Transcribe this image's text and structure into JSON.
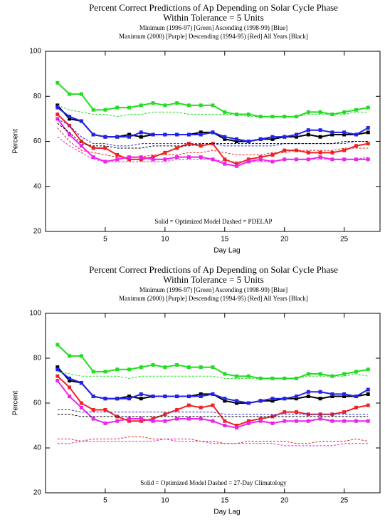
{
  "chart_data": [
    {
      "type": "line",
      "title": "Percent Correct Predictions of Ap Depending on Solar Cycle Phase",
      "subtitle": "Within Tolerance = 5 Units",
      "legend_lines": [
        "Minimum (1996-97) [Green]   Ascending (1998-99) [Blue]",
        "Maximum (2000) [Purple]   Descending (1994-95) [Red]   All Years [Black]"
      ],
      "annotation": "Solid = Optimized Model     Dashed = PDELAP",
      "x_label": "Day Lag",
      "y_label": "Percent",
      "x": [
        1,
        2,
        3,
        4,
        5,
        6,
        7,
        8,
        9,
        10,
        11,
        12,
        13,
        14,
        15,
        16,
        17,
        18,
        19,
        20,
        21,
        22,
        23,
        24,
        25,
        26,
        27
      ],
      "xlim": [
        0,
        28
      ],
      "ylim": [
        20,
        100
      ],
      "xticks": [
        5,
        10,
        15,
        20,
        25
      ],
      "yticks": [
        20,
        40,
        60,
        80,
        100
      ],
      "series": [
        {
          "color": "#22dd22",
          "style": "solid",
          "values": [
            86,
            81,
            81,
            74,
            74,
            75,
            75,
            76,
            77,
            76,
            77,
            76,
            76,
            76,
            73,
            72,
            72,
            71,
            71,
            71,
            71,
            73,
            73,
            72,
            73,
            74,
            75
          ]
        },
        {
          "color": "#000000",
          "style": "solid",
          "values": [
            76,
            70,
            69,
            63,
            62,
            62,
            63,
            62,
            63,
            63,
            63,
            63,
            64,
            64,
            61,
            60,
            60,
            61,
            61,
            62,
            62,
            63,
            62,
            63,
            63,
            63,
            64
          ]
        },
        {
          "color": "#2222ee",
          "style": "solid",
          "values": [
            75,
            71,
            69,
            63,
            62,
            62,
            62,
            64,
            63,
            63,
            63,
            63,
            63,
            64,
            62,
            61,
            60,
            61,
            62,
            62,
            63,
            65,
            65,
            64,
            64,
            63,
            66
          ]
        },
        {
          "color": "#ee2222",
          "style": "solid",
          "values": [
            72,
            67,
            60,
            57,
            57,
            54,
            52,
            52,
            53,
            55,
            57,
            59,
            58,
            59,
            52,
            50,
            52,
            53,
            54,
            56,
            56,
            55,
            55,
            55,
            56,
            58,
            59
          ]
        },
        {
          "color": "#ee22ee",
          "style": "solid",
          "values": [
            70,
            63,
            58,
            53,
            51,
            52,
            53,
            53,
            52,
            52,
            53,
            53,
            53,
            52,
            50,
            49,
            51,
            52,
            51,
            52,
            52,
            52,
            53,
            52,
            52,
            52,
            52
          ]
        },
        {
          "color": "#22dd22",
          "style": "dashed",
          "values": [
            76,
            74,
            73,
            72,
            72,
            71,
            72,
            72,
            73,
            73,
            73,
            72,
            72,
            72,
            72,
            72,
            71,
            71,
            71,
            71,
            71,
            72,
            72,
            72,
            72,
            73,
            73
          ]
        },
        {
          "color": "#2222ee",
          "style": "dashed",
          "values": [
            70,
            67,
            62,
            59,
            59,
            58,
            58,
            59,
            59,
            59,
            59,
            59,
            59,
            59,
            58,
            58,
            58,
            58,
            58,
            59,
            59,
            59,
            59,
            59,
            59,
            60,
            60
          ]
        },
        {
          "color": "#000000",
          "style": "dashed",
          "values": [
            68,
            64,
            59,
            58,
            58,
            57,
            57,
            57,
            58,
            58,
            58,
            58,
            59,
            59,
            59,
            59,
            59,
            59,
            59,
            59,
            59,
            59,
            59,
            59,
            60,
            60,
            60
          ]
        },
        {
          "color": "#ee2222",
          "style": "dashed",
          "values": [
            66,
            60,
            56,
            55,
            54,
            53,
            53,
            53,
            54,
            54,
            54,
            55,
            55,
            56,
            55,
            54,
            54,
            54,
            55,
            55,
            56,
            56,
            56,
            56,
            57,
            57,
            57
          ]
        },
        {
          "color": "#ee22ee",
          "style": "dashed",
          "values": [
            62,
            58,
            55,
            52,
            51,
            51,
            51,
            51,
            51,
            51,
            52,
            52,
            52,
            52,
            51,
            51,
            51,
            51,
            51,
            52,
            52,
            52,
            52,
            52,
            52,
            52,
            53
          ]
        }
      ]
    },
    {
      "type": "line",
      "title": "Percent Correct Predictions of Ap Depending on Solar Cycle Phase",
      "subtitle": "Within Tolerance = 5 Units",
      "legend_lines": [
        "Minimum (1996-97) [Green]   Ascending (1998-99) [Blue]",
        "Maximum (2000) [Purple]   Descending (1994-95) [Red]   All Years [Black]"
      ],
      "annotation": "Solid = Optimized Model     Dashed = 27-Day Climatology",
      "x_label": "Day Lag",
      "y_label": "Percent",
      "x": [
        1,
        2,
        3,
        4,
        5,
        6,
        7,
        8,
        9,
        10,
        11,
        12,
        13,
        14,
        15,
        16,
        17,
        18,
        19,
        20,
        21,
        22,
        23,
        24,
        25,
        26,
        27
      ],
      "xlim": [
        0,
        28
      ],
      "ylim": [
        20,
        100
      ],
      "xticks": [
        5,
        10,
        15,
        20,
        25
      ],
      "yticks": [
        20,
        40,
        60,
        80,
        100
      ],
      "series": [
        {
          "color": "#22dd22",
          "style": "solid",
          "values": [
            86,
            81,
            81,
            74,
            74,
            75,
            75,
            76,
            77,
            76,
            77,
            76,
            76,
            76,
            73,
            72,
            72,
            71,
            71,
            71,
            71,
            73,
            73,
            72,
            73,
            74,
            75
          ]
        },
        {
          "color": "#000000",
          "style": "solid",
          "values": [
            76,
            70,
            69,
            63,
            62,
            62,
            63,
            62,
            63,
            63,
            63,
            63,
            64,
            64,
            61,
            60,
            60,
            61,
            61,
            62,
            62,
            63,
            62,
            63,
            63,
            63,
            64
          ]
        },
        {
          "color": "#2222ee",
          "style": "solid",
          "values": [
            75,
            71,
            69,
            63,
            62,
            62,
            62,
            64,
            63,
            63,
            63,
            63,
            63,
            64,
            62,
            61,
            60,
            61,
            62,
            62,
            63,
            65,
            65,
            64,
            64,
            63,
            66
          ]
        },
        {
          "color": "#ee2222",
          "style": "solid",
          "values": [
            72,
            67,
            60,
            57,
            57,
            54,
            52,
            52,
            53,
            55,
            57,
            59,
            58,
            59,
            52,
            50,
            52,
            53,
            54,
            56,
            56,
            55,
            55,
            55,
            56,
            58,
            59
          ]
        },
        {
          "color": "#ee22ee",
          "style": "solid",
          "values": [
            70,
            63,
            58,
            53,
            51,
            52,
            53,
            53,
            52,
            52,
            53,
            53,
            53,
            52,
            50,
            49,
            51,
            52,
            51,
            52,
            52,
            52,
            53,
            52,
            52,
            52,
            52
          ]
        },
        {
          "color": "#22dd22",
          "style": "dashed",
          "values": [
            74,
            73,
            72,
            72,
            72,
            72,
            71,
            72,
            72,
            72,
            72,
            72,
            72,
            72,
            71,
            71,
            71,
            71,
            71,
            71,
            71,
            72,
            72,
            72,
            72,
            73,
            72
          ]
        },
        {
          "color": "#2222ee",
          "style": "dashed",
          "values": [
            57,
            57,
            56,
            56,
            56,
            56,
            56,
            56,
            56,
            56,
            56,
            56,
            56,
            56,
            55,
            55,
            55,
            55,
            55,
            55,
            55,
            55,
            55,
            55,
            55,
            55,
            55
          ]
        },
        {
          "color": "#000000",
          "style": "dashed",
          "values": [
            55,
            55,
            54,
            54,
            54,
            54,
            54,
            54,
            54,
            54,
            54,
            54,
            54,
            54,
            54,
            54,
            54,
            54,
            54,
            54,
            54,
            54,
            54,
            54,
            54,
            54,
            54
          ]
        },
        {
          "color": "#ee2222",
          "style": "dashed",
          "values": [
            44,
            44,
            43,
            44,
            44,
            44,
            45,
            45,
            44,
            44,
            44,
            44,
            43,
            43,
            42,
            42,
            43,
            43,
            43,
            43,
            42,
            42,
            43,
            43,
            43,
            44,
            43
          ]
        },
        {
          "color": "#ee22ee",
          "style": "dashed",
          "values": [
            42,
            42,
            43,
            43,
            43,
            43,
            43,
            43,
            43,
            44,
            43,
            43,
            43,
            42,
            42,
            42,
            42,
            42,
            42,
            41,
            41,
            41,
            41,
            41,
            42,
            42,
            42
          ]
        }
      ]
    }
  ]
}
